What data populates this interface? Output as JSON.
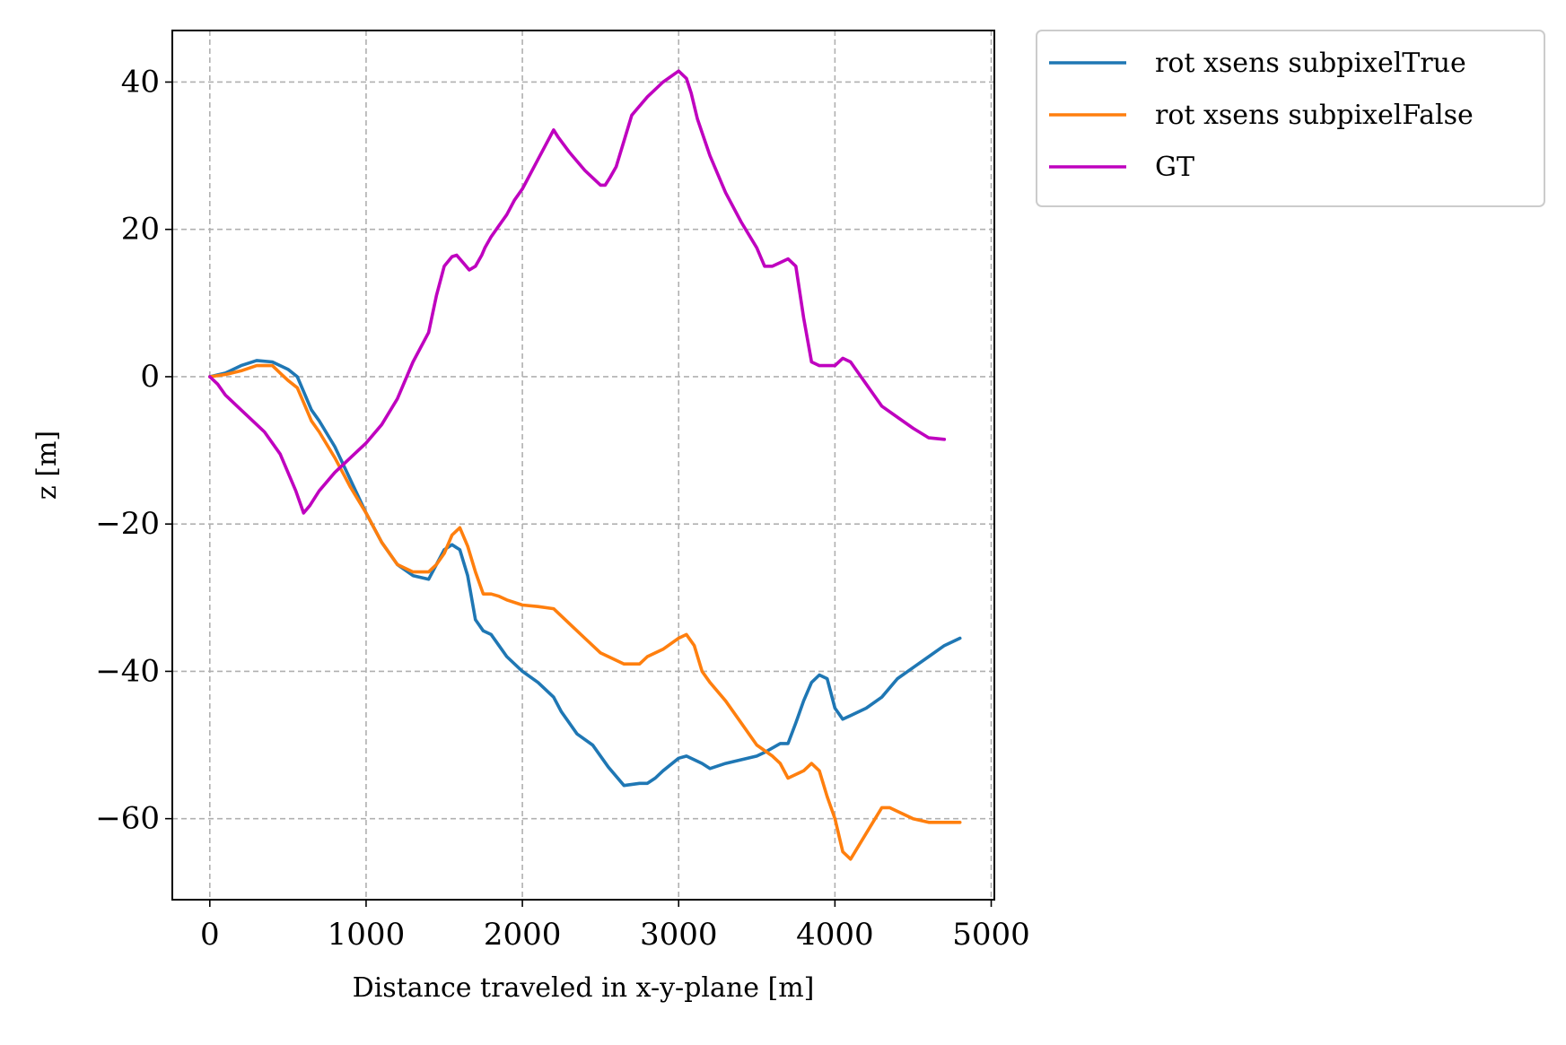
{
  "chart_data": {
    "type": "line",
    "title": "",
    "xlabel": "Distance traveled in x-y-plane [m]",
    "ylabel": "z [m]",
    "xlim": [
      -240,
      5020
    ],
    "ylim": [
      -71,
      47
    ],
    "xticks": [
      0,
      1000,
      2000,
      3000,
      4000,
      5000
    ],
    "xtick_labels": [
      "0",
      "1000",
      "2000",
      "3000",
      "4000",
      "5000"
    ],
    "yticks": [
      -60,
      -40,
      -20,
      0,
      20,
      40
    ],
    "ytick_labels": [
      "−60",
      "−40",
      "−20",
      "0",
      "20",
      "40"
    ],
    "grid": true,
    "legend_position": "outside-top-right",
    "series": [
      {
        "name": "rot xsens subpixelTrue",
        "color": "#1f77b4",
        "x": [
          0,
          100,
          200,
          300,
          400,
          500,
          560,
          600,
          650,
          700,
          800,
          900,
          1000,
          1100,
          1200,
          1300,
          1400,
          1450,
          1500,
          1550,
          1600,
          1650,
          1700,
          1750,
          1800,
          1850,
          1900,
          2000,
          2100,
          2200,
          2250,
          2350,
          2450,
          2500,
          2550,
          2650,
          2750,
          2800,
          2850,
          2900,
          3000,
          3050,
          3100,
          3150,
          3200,
          3300,
          3400,
          3500,
          3550,
          3650,
          3700,
          3750,
          3800,
          3850,
          3900,
          3950,
          4000,
          4050,
          4100,
          4200,
          4300,
          4400,
          4500,
          4600,
          4700,
          4800
        ],
        "y": [
          0,
          0.5,
          1.5,
          2.2,
          2,
          1,
          0,
          -2,
          -4.5,
          -6,
          -9.5,
          -14,
          -18.5,
          -22.5,
          -25.5,
          -27,
          -27.5,
          -25.5,
          -23.5,
          -22.8,
          -23.5,
          -27,
          -33,
          -34.5,
          -35,
          -36.5,
          -38,
          -40,
          -41.5,
          -43.5,
          -45.5,
          -48.5,
          -50,
          -51.5,
          -53,
          -55.5,
          -55.2,
          -55.2,
          -54.5,
          -53.5,
          -51.8,
          -51.5,
          -52,
          -52.5,
          -53.2,
          -52.5,
          -52,
          -51.5,
          -51,
          -49.8,
          -49.8,
          -47,
          -44,
          -41.5,
          -40.5,
          -41,
          -45,
          -46.5,
          -46,
          -45,
          -43.5,
          -41,
          -39.5,
          -38,
          -36.5,
          -35.5
        ]
      },
      {
        "name": "rot xsens subpixelFalse",
        "color": "#ff7f0e",
        "x": [
          0,
          100,
          200,
          300,
          400,
          450,
          500,
          560,
          600,
          650,
          700,
          800,
          900,
          1000,
          1100,
          1200,
          1300,
          1400,
          1450,
          1500,
          1550,
          1600,
          1650,
          1700,
          1750,
          1800,
          1850,
          1900,
          2000,
          2100,
          2200,
          2250,
          2300,
          2400,
          2500,
          2550,
          2650,
          2750,
          2800,
          2900,
          3000,
          3050,
          3100,
          3150,
          3200,
          3300,
          3400,
          3500,
          3600,
          3650,
          3700,
          3750,
          3800,
          3850,
          3900,
          3950,
          4000,
          4050,
          4100,
          4200,
          4300,
          4350,
          4400,
          4500,
          4600,
          4700,
          4750,
          4800
        ],
        "y": [
          0,
          0.3,
          0.8,
          1.5,
          1.5,
          0.5,
          -0.5,
          -1.5,
          -3.5,
          -6,
          -7.5,
          -11,
          -15,
          -18.5,
          -22.5,
          -25.5,
          -26.5,
          -26.5,
          -25.5,
          -24,
          -21.5,
          -20.5,
          -23,
          -26.5,
          -29.5,
          -29.5,
          -29.8,
          -30.3,
          -31,
          -31.2,
          -31.5,
          -32.5,
          -33.5,
          -35.5,
          -37.5,
          -38,
          -39,
          -39,
          -38,
          -37,
          -35.5,
          -35,
          -36.5,
          -40,
          -41.5,
          -44,
          -47,
          -50,
          -51.5,
          -52.5,
          -54.5,
          -54,
          -53.5,
          -52.5,
          -53.5,
          -57,
          -60,
          -64.5,
          -65.5,
          -62,
          -58.5,
          -58.5,
          -59,
          -60,
          -60.5,
          -60.5,
          -60.5,
          -60.5
        ]
      },
      {
        "name": "GT",
        "color": "#bf00bf",
        "x": [
          0,
          50,
          100,
          150,
          200,
          300,
          350,
          400,
          450,
          500,
          550,
          600,
          640,
          700,
          800,
          900,
          1000,
          1100,
          1200,
          1300,
          1400,
          1450,
          1500,
          1550,
          1580,
          1620,
          1660,
          1700,
          1740,
          1760,
          1800,
          1850,
          1900,
          1950,
          2000,
          2100,
          2200,
          2230,
          2300,
          2400,
          2450,
          2500,
          2530,
          2560,
          2600,
          2650,
          2700,
          2800,
          2900,
          3000,
          3050,
          3080,
          3120,
          3200,
          3300,
          3400,
          3500,
          3550,
          3600,
          3650,
          3700,
          3750,
          3800,
          3850,
          3900,
          3950,
          4000,
          4050,
          4100,
          4150,
          4200,
          4250,
          4300,
          4400,
          4500,
          4600,
          4700
        ],
        "y": [
          0,
          -1,
          -2.5,
          -3.5,
          -4.5,
          -6.5,
          -7.5,
          -9,
          -10.5,
          -13,
          -15.5,
          -18.5,
          -17.5,
          -15.5,
          -13,
          -11,
          -9,
          -6.5,
          -3,
          2,
          6,
          11,
          15,
          16.3,
          16.5,
          15.5,
          14.5,
          15,
          16.5,
          17.5,
          19,
          20.5,
          22,
          24,
          25.5,
          29.5,
          33.5,
          32.5,
          30.5,
          28,
          27,
          26,
          26,
          27,
          28.5,
          32,
          35.5,
          38,
          40,
          41.5,
          40.5,
          38.5,
          35,
          30,
          25,
          21,
          17.5,
          15,
          15,
          15.5,
          16,
          15,
          8,
          2,
          1.5,
          1.5,
          1.5,
          2.5,
          2,
          0.5,
          -1,
          -2.5,
          -4,
          -5.5,
          -7,
          -8.3,
          -8.5
        ]
      }
    ]
  }
}
